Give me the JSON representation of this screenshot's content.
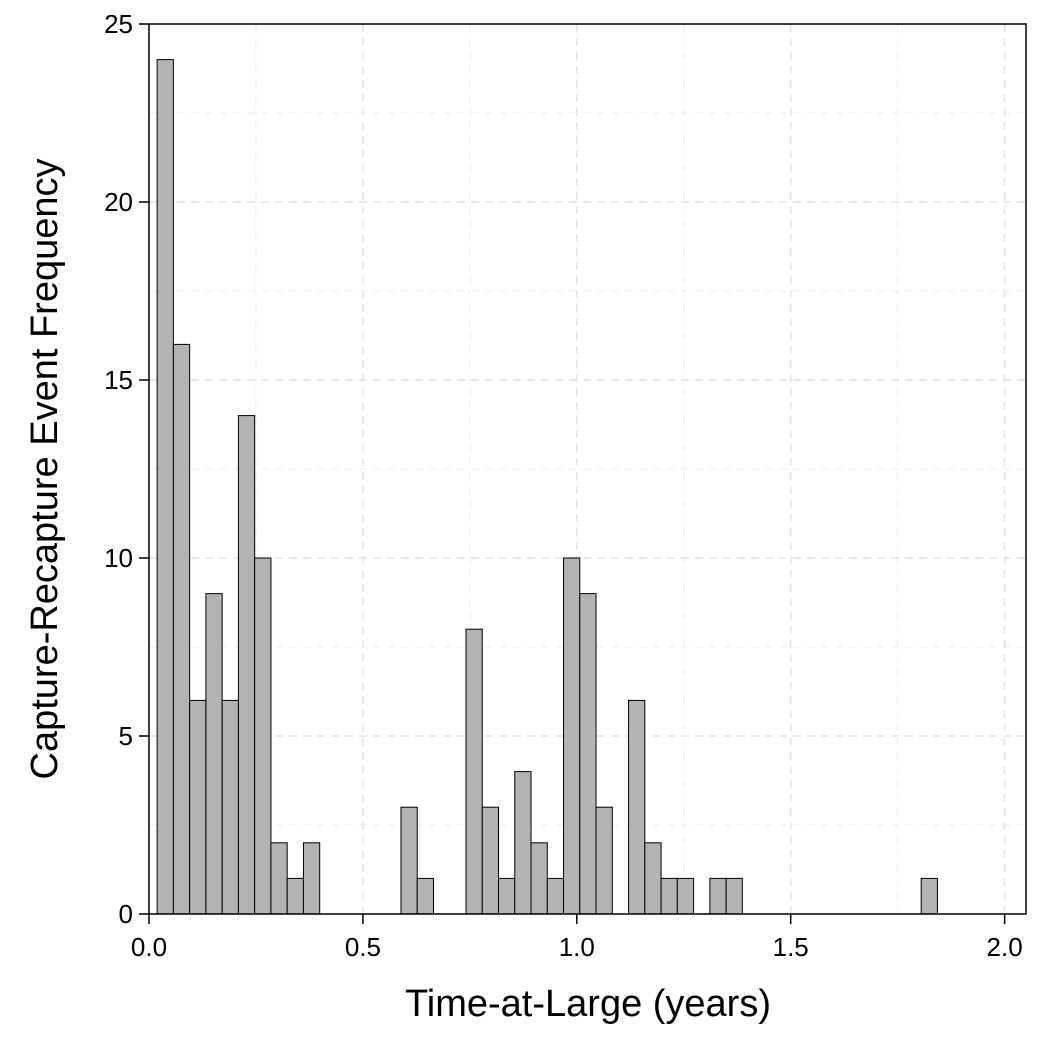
{
  "chart_data": {
    "type": "bar",
    "title": "",
    "xlabel": "Time-at-Large (years)",
    "ylabel": "Capture-Recapture Event Frequency",
    "xlim": [
      0.0,
      2.05
    ],
    "ylim": [
      0,
      25
    ],
    "xticks": [
      0.0,
      0.5,
      1.0,
      1.5,
      2.0
    ],
    "xtick_labels": [
      "0.0",
      "0.5",
      "1.0",
      "1.5",
      "2.0"
    ],
    "yticks": [
      0,
      5,
      10,
      15,
      20,
      25
    ],
    "ytick_labels": [
      "0",
      "5",
      "10",
      "15",
      "20",
      "25"
    ],
    "grid": true,
    "bin_width": 0.038,
    "bins": [
      {
        "start": 0.019,
        "count": 24
      },
      {
        "start": 0.057,
        "count": 16
      },
      {
        "start": 0.095,
        "count": 6
      },
      {
        "start": 0.133,
        "count": 9
      },
      {
        "start": 0.171,
        "count": 6
      },
      {
        "start": 0.209,
        "count": 14
      },
      {
        "start": 0.247,
        "count": 10
      },
      {
        "start": 0.285,
        "count": 2
      },
      {
        "start": 0.323,
        "count": 1
      },
      {
        "start": 0.361,
        "count": 2
      },
      {
        "start": 0.399,
        "count": 0
      },
      {
        "start": 0.437,
        "count": 0
      },
      {
        "start": 0.475,
        "count": 0
      },
      {
        "start": 0.513,
        "count": 0
      },
      {
        "start": 0.551,
        "count": 0
      },
      {
        "start": 0.589,
        "count": 3
      },
      {
        "start": 0.627,
        "count": 1
      },
      {
        "start": 0.665,
        "count": 0
      },
      {
        "start": 0.703,
        "count": 0
      },
      {
        "start": 0.741,
        "count": 8
      },
      {
        "start": 0.779,
        "count": 3
      },
      {
        "start": 0.817,
        "count": 1
      },
      {
        "start": 0.855,
        "count": 4
      },
      {
        "start": 0.893,
        "count": 2
      },
      {
        "start": 0.931,
        "count": 1
      },
      {
        "start": 0.969,
        "count": 10
      },
      {
        "start": 1.007,
        "count": 9
      },
      {
        "start": 1.045,
        "count": 3
      },
      {
        "start": 1.083,
        "count": 0
      },
      {
        "start": 1.121,
        "count": 6
      },
      {
        "start": 1.159,
        "count": 2
      },
      {
        "start": 1.197,
        "count": 1
      },
      {
        "start": 1.235,
        "count": 1
      },
      {
        "start": 1.273,
        "count": 0
      },
      {
        "start": 1.311,
        "count": 1
      },
      {
        "start": 1.349,
        "count": 1
      },
      {
        "start": 1.805,
        "count": 1
      }
    ],
    "bar_color": "#b3b3b3",
    "bar_edge_color": "#000000"
  }
}
